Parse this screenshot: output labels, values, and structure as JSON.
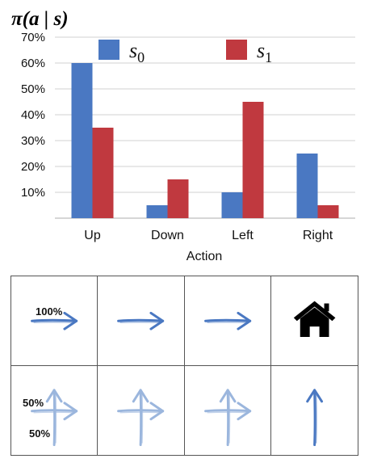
{
  "chart_data": {
    "type": "bar",
    "title": "π(a | s)",
    "xlabel": "Action",
    "ylabel": "",
    "categories": [
      "Up",
      "Down",
      "Left",
      "Right"
    ],
    "series": [
      {
        "name": "s0",
        "values": [
          60,
          5,
          10,
          25
        ]
      },
      {
        "name": "s1",
        "values": [
          35,
          15,
          45,
          5
        ]
      }
    ],
    "legend_labels": [
      {
        "base": "s",
        "sub": "0"
      },
      {
        "base": "s",
        "sub": "1"
      }
    ],
    "ylim": [
      0,
      70
    ],
    "yticks": [
      10,
      20,
      30,
      40,
      50,
      60,
      70
    ],
    "ytick_labels": [
      "10%",
      "20%",
      "30%",
      "40%",
      "50%",
      "60%",
      "70%"
    ],
    "grid": true,
    "legend_position": "top",
    "colors": {
      "s0": "#4a78c2",
      "s1": "#c0393f"
    }
  },
  "policy_grid": {
    "rows": [
      [
        {
          "arrows": [
            "right"
          ],
          "label_top": "100%"
        },
        {
          "arrows": [
            "right"
          ]
        },
        {
          "arrows": [
            "right"
          ]
        },
        {
          "icon": "home-icon"
        }
      ],
      [
        {
          "arrows": [
            "up",
            "right"
          ],
          "label_top": "50%",
          "label_bottom": "50%",
          "faded": true
        },
        {
          "arrows": [
            "up",
            "right"
          ],
          "faded": true
        },
        {
          "arrows": [
            "up",
            "right"
          ],
          "faded": true
        },
        {
          "arrows": [
            "up"
          ]
        }
      ]
    ],
    "arrow_color": "#4a78c2",
    "faded_arrow_color": "#9bb6dd",
    "home_color": "#000000"
  }
}
